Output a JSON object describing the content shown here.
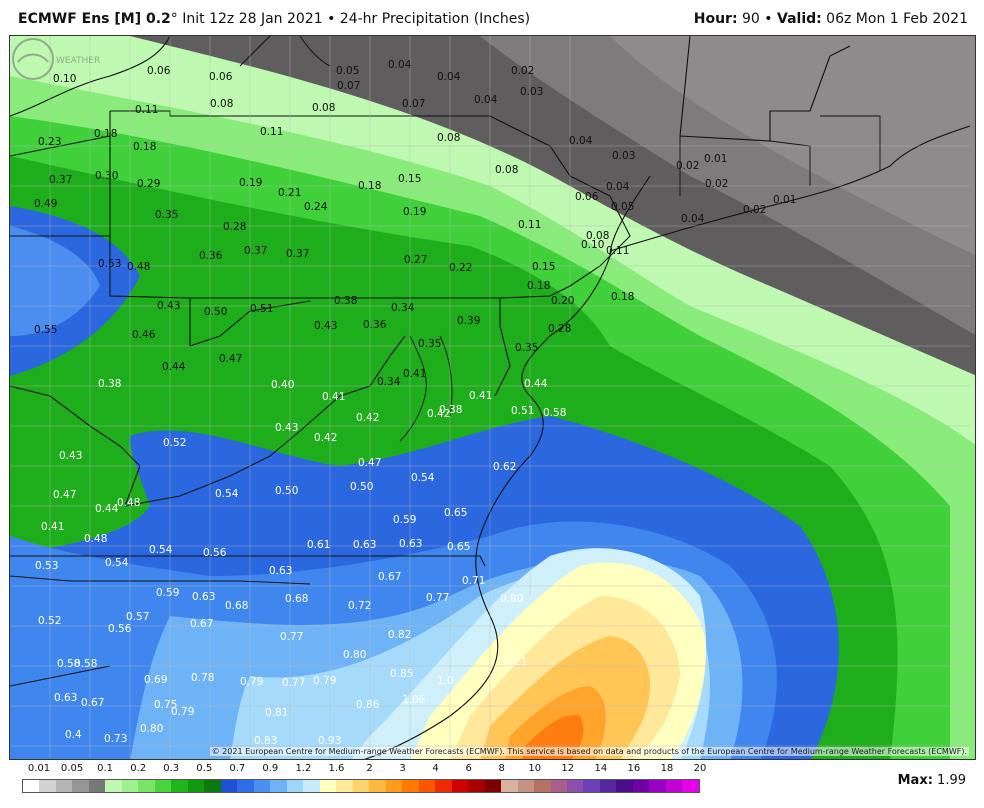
{
  "header": {
    "model": "ECMWF Ens [M] 0.2",
    "degree": "°",
    "init": " Init 12z 28 Jan 2021",
    "sep": " • ",
    "field": "24-hr Precipitation (Inches)",
    "hour_label": "Hour:",
    "hour_value": " 90",
    "valid_label": "Valid:",
    "valid_value": " 06z Mon 1 Feb 2021"
  },
  "copyright": "© 2021 European Centre for Medium-range Weather Forecasts (ECMWF). This service is based on data and products of the European Centre for Medium-range Weather Forecasts (ECMWF).",
  "logo_text": "WEATHERBELL",
  "legend": {
    "ticks": [
      "0.01",
      "0.05",
      "0.1",
      "0.2",
      "0.3",
      "0.5",
      "0.7",
      "0.9",
      "1.2",
      "1.6",
      "2",
      "3",
      "4",
      "6",
      "8",
      "10",
      "12",
      "14",
      "16",
      "18",
      "20"
    ],
    "colors": [
      "#ffffff",
      "#d2d2d2",
      "#b4b4b4",
      "#969696",
      "#787878",
      "#bdf9b1",
      "#9ef18f",
      "#78e564",
      "#4bd43d",
      "#1fb61b",
      "#0e9a0c",
      "#0b7a0a",
      "#1e4fd6",
      "#2f6ee8",
      "#4a90f2",
      "#6fb3f7",
      "#9fd5fa",
      "#c6ecfb",
      "#ffffc0",
      "#ffea9a",
      "#ffd36b",
      "#ffb83e",
      "#ff9a1a",
      "#ff7a00",
      "#ff5400",
      "#f02a00",
      "#d10000",
      "#a80000",
      "#7d0000",
      "#d8b1a0",
      "#c79183",
      "#b37264",
      "#a85f8e",
      "#8b4fae",
      "#6d3fb9",
      "#57279c",
      "#4a0c88",
      "#6f00a3",
      "#9900c4",
      "#c300d6",
      "#e800e8"
    ]
  },
  "max": {
    "label": "Max:",
    "value": " 1.99"
  },
  "map": {
    "labels": [
      [
        "0.10",
        52,
        77
      ],
      [
        "0.06",
        146,
        69
      ],
      [
        "0.06",
        208,
        75
      ],
      [
        "0.05",
        335,
        69
      ],
      [
        "0.04",
        387,
        63
      ],
      [
        "0.04",
        436,
        75
      ],
      [
        "0.02",
        510,
        69
      ],
      [
        "0.07",
        336,
        84
      ],
      [
        "0.07",
        401,
        102
      ],
      [
        "0.03",
        519,
        90
      ],
      [
        "0.04",
        473,
        98
      ],
      [
        "0.08",
        209,
        102
      ],
      [
        "0.08",
        311,
        106
      ],
      [
        "0.11",
        134,
        108
      ],
      [
        "0.11",
        259,
        130
      ],
      [
        "0.08",
        436,
        136
      ],
      [
        "0.04",
        568,
        139
      ],
      [
        "0.03",
        611,
        154
      ],
      [
        "0.02",
        675,
        164
      ],
      [
        "0.01",
        703,
        157
      ],
      [
        "0.23",
        37,
        140
      ],
      [
        "0.18",
        93,
        132
      ],
      [
        "0.18",
        132,
        145
      ],
      [
        "0.37",
        48,
        178
      ],
      [
        "0.30",
        94,
        174
      ],
      [
        "0.29",
        136,
        182
      ],
      [
        "0.19",
        238,
        181
      ],
      [
        "0.21",
        277,
        191
      ],
      [
        "0.18",
        357,
        184
      ],
      [
        "0.15",
        397,
        177
      ],
      [
        "0.08",
        494,
        168
      ],
      [
        "0.06",
        574,
        195
      ],
      [
        "0.04",
        605,
        185
      ],
      [
        "0.02",
        704,
        182
      ],
      [
        "0.05",
        610,
        205
      ],
      [
        "0.04",
        680,
        217
      ],
      [
        "0.02",
        742,
        208
      ],
      [
        "0.01",
        772,
        198
      ],
      [
        "0.49",
        33,
        202
      ],
      [
        "0.35",
        154,
        213
      ],
      [
        "0.28",
        222,
        225
      ],
      [
        "0.24",
        303,
        205
      ],
      [
        "0.19",
        402,
        210
      ],
      [
        "0.11",
        517,
        223
      ],
      [
        "0.08",
        585,
        234
      ],
      [
        "0.10",
        580,
        243
      ],
      [
        "0.11",
        605,
        249
      ],
      [
        "0.53",
        97,
        262
      ],
      [
        "0.48",
        126,
        265
      ],
      [
        "0.36",
        198,
        254
      ],
      [
        "0.37",
        243,
        249
      ],
      [
        "0.37",
        285,
        252
      ],
      [
        "0.27",
        403,
        258
      ],
      [
        "0.22",
        448,
        266
      ],
      [
        "0.15",
        531,
        265
      ],
      [
        "0.18",
        526,
        284
      ],
      [
        "0.20",
        550,
        299
      ],
      [
        "0.18",
        610,
        295
      ],
      [
        "0.43",
        156,
        304
      ],
      [
        "0.50",
        203,
        310
      ],
      [
        "0.51",
        249,
        307
      ],
      [
        "0.38",
        333,
        299
      ],
      [
        "0.34",
        390,
        306
      ],
      [
        "0.28",
        547,
        327
      ],
      [
        "0.55",
        33,
        328
      ],
      [
        "0.46",
        131,
        333
      ],
      [
        "0.43",
        313,
        324
      ],
      [
        "0.36",
        362,
        323
      ],
      [
        "0.39",
        456,
        319
      ],
      [
        "0.35",
        417,
        342
      ],
      [
        "0.35",
        514,
        346
      ],
      [
        "0.47",
        218,
        357
      ],
      [
        "0.44",
        161,
        365
      ],
      [
        "0.41",
        402,
        372
      ],
      [
        "0.34",
        376,
        380
      ],
      [
        "0.44",
        523,
        382
      ],
      [
        "0.38",
        97,
        382
      ],
      [
        "0.40",
        270,
        383
      ],
      [
        "0.41",
        321,
        395
      ],
      [
        "0.41",
        468,
        394
      ],
      [
        "0.51",
        510,
        409
      ],
      [
        "0.58",
        542,
        411
      ],
      [
        "0.42",
        355,
        416
      ],
      [
        "0.42",
        426,
        412
      ],
      [
        "0.38",
        438,
        408
      ],
      [
        "0.43",
        274,
        426
      ],
      [
        "0.42",
        313,
        436
      ],
      [
        "0.52",
        162,
        441
      ],
      [
        "0.62",
        492,
        465
      ],
      [
        "0.43",
        58,
        454
      ],
      [
        "0.47",
        357,
        461
      ],
      [
        "0.54",
        410,
        476
      ],
      [
        "0.47",
        52,
        493
      ],
      [
        "0.44",
        94,
        507
      ],
      [
        "0.48",
        116,
        501
      ],
      [
        "0.54",
        214,
        492
      ],
      [
        "0.50",
        274,
        489
      ],
      [
        "0.50",
        349,
        485
      ],
      [
        "0.65",
        443,
        511
      ],
      [
        "0.59",
        392,
        518
      ],
      [
        "0.41",
        40,
        525
      ],
      [
        "0.48",
        83,
        537
      ],
      [
        "0.61",
        306,
        543
      ],
      [
        "0.63",
        352,
        543
      ],
      [
        "0.63",
        398,
        542
      ],
      [
        "0.65",
        446,
        545
      ],
      [
        "0.54",
        148,
        548
      ],
      [
        "0.56",
        202,
        551
      ],
      [
        "0.53",
        34,
        564
      ],
      [
        "0.54",
        104,
        561
      ],
      [
        "0.63",
        268,
        569
      ],
      [
        "0.67",
        377,
        575
      ],
      [
        "0.71",
        461,
        579
      ],
      [
        "0.59",
        155,
        591
      ],
      [
        "0.63",
        191,
        595
      ],
      [
        "0.68",
        224,
        604
      ],
      [
        "0.68",
        284,
        597
      ],
      [
        "0.72",
        347,
        604
      ],
      [
        "0.77",
        425,
        596
      ],
      [
        "0.80",
        499,
        597
      ],
      [
        "0.52",
        37,
        619
      ],
      [
        "0.57",
        125,
        615
      ],
      [
        "0.56",
        107,
        627
      ],
      [
        "0.67",
        189,
        622
      ],
      [
        "0.77",
        279,
        635
      ],
      [
        "0.82",
        387,
        633
      ],
      [
        "0.80",
        342,
        653
      ],
      [
        "0.58",
        56,
        662
      ],
      [
        "0.58",
        73,
        662
      ],
      [
        "0.69",
        143,
        678
      ],
      [
        "0.78",
        190,
        676
      ],
      [
        "0.79",
        239,
        680
      ],
      [
        "0.77",
        281,
        681
      ],
      [
        "0.79",
        312,
        679
      ],
      [
        "0.85",
        389,
        672
      ],
      [
        "1.21",
        503,
        660
      ],
      [
        "1.0",
        436,
        679
      ],
      [
        "0.63",
        53,
        696
      ],
      [
        "0.67",
        80,
        701
      ],
      [
        "0.75",
        153,
        703
      ],
      [
        "0.79",
        170,
        710
      ],
      [
        "0.81",
        264,
        711
      ],
      [
        "0.86",
        355,
        703
      ],
      [
        "1.06",
        401,
        698
      ],
      [
        "0.73",
        103,
        737
      ],
      [
        "0.80",
        139,
        727
      ],
      [
        "0.83",
        253,
        739
      ],
      [
        "0.93",
        317,
        739
      ],
      [
        "0.4",
        64,
        733
      ]
    ]
  }
}
